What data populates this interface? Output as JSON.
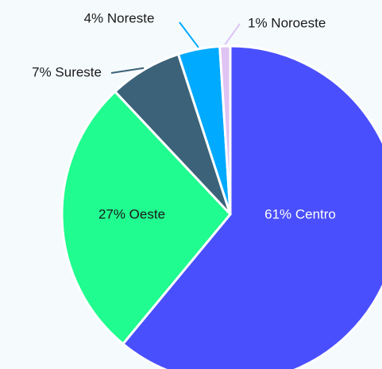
{
  "chart_data": {
    "type": "pie",
    "values": [
      61,
      27,
      7,
      4,
      1
    ],
    "value_labels": [
      "61% Centro",
      "27% Oeste",
      "7% Sureste",
      "4% Noreste",
      "1% Noroeste"
    ],
    "colors": [
      "#4a4ffd",
      "#20fc8f",
      "#3b6278",
      "#00aaff",
      "#dfc3f3"
    ]
  }
}
